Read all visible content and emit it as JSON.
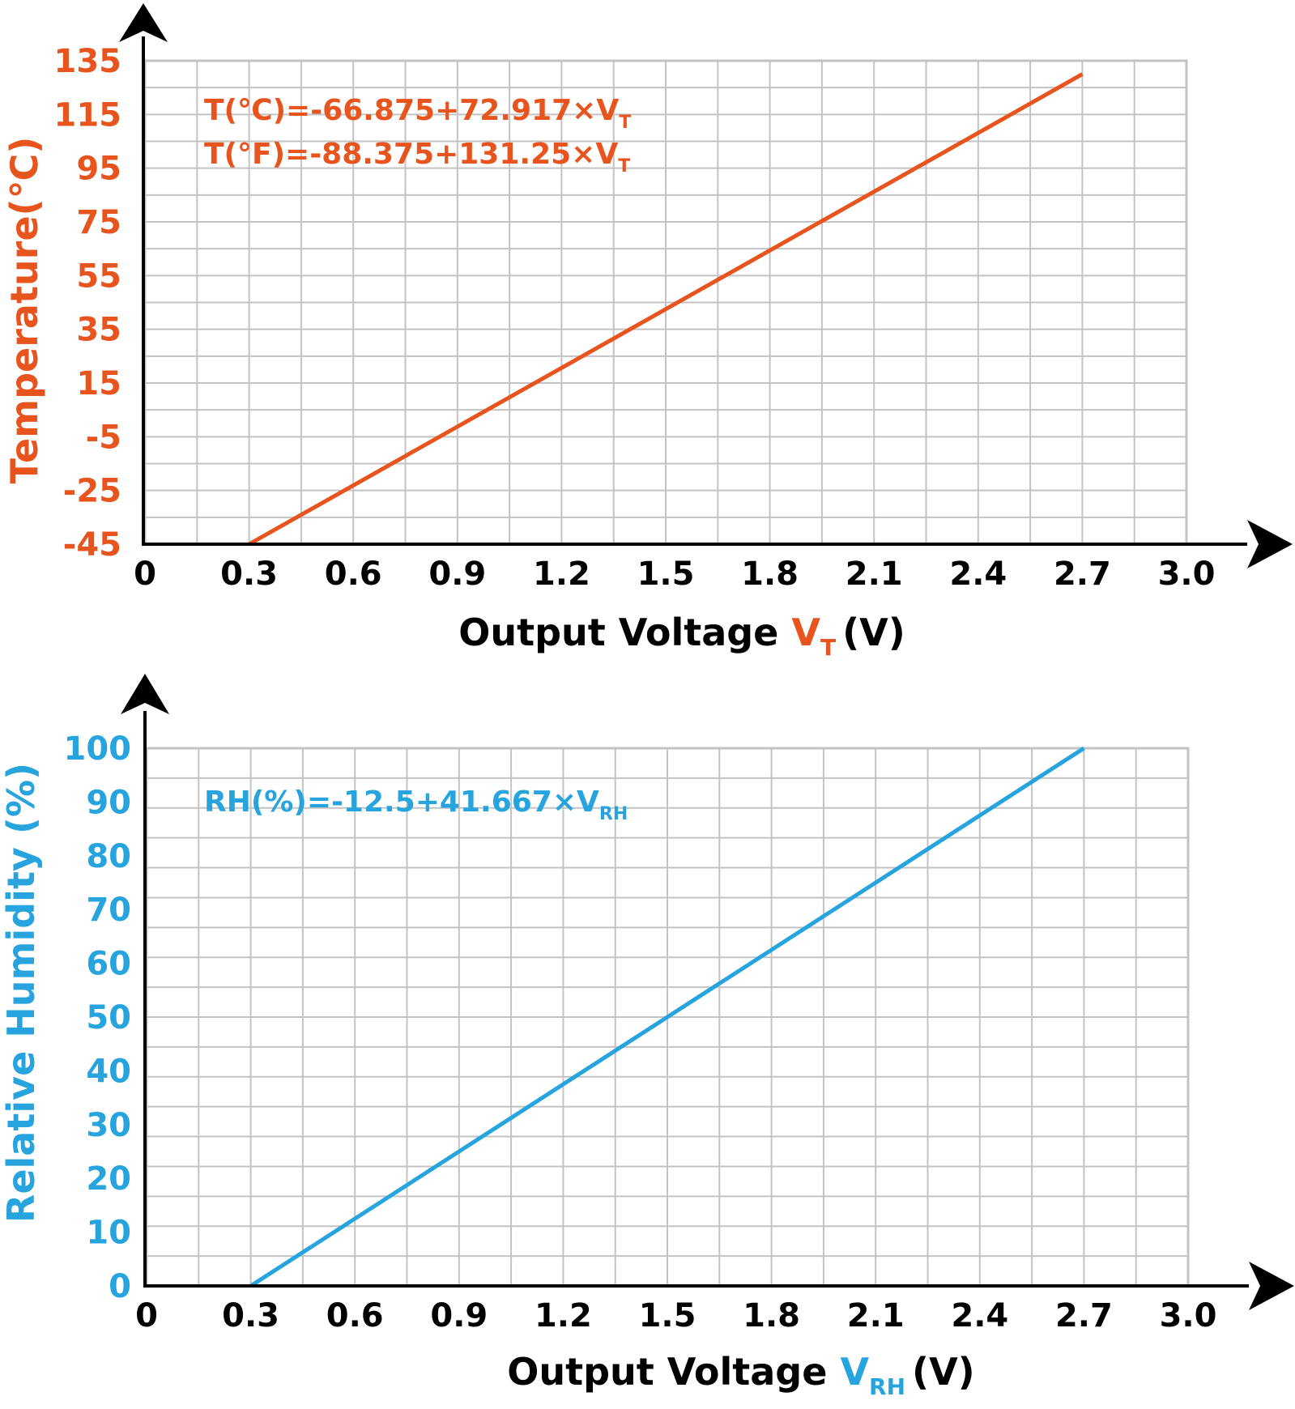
{
  "colors": {
    "temperature": "#e8541e",
    "humidity": "#27a4de",
    "grid": "#c3c3c3",
    "axis": "#000000"
  },
  "chart_data": [
    {
      "type": "line",
      "title": "",
      "xlabel": "Output Voltage",
      "xlabel_var": "V",
      "xlabel_sub": "T",
      "xlabel_unit": "(V)",
      "ylabel": "Temperature(℃)",
      "xlim": [
        0,
        3.0
      ],
      "ylim": [
        -45,
        135
      ],
      "x_ticks": [
        "0",
        "0.3",
        "0.6",
        "0.9",
        "1.2",
        "1.5",
        "1.8",
        "2.1",
        "2.4",
        "2.7",
        "3.0"
      ],
      "y_ticks": [
        "-45",
        "-25",
        "-5",
        "15",
        "35",
        "55",
        "75",
        "95",
        "115",
        "135"
      ],
      "annotations": [
        {
          "main": "T(℃)=-66.875+72.917×V",
          "sub": "T"
        },
        {
          "main": "T(°F)=-88.375+131.25×V",
          "sub": "T"
        }
      ],
      "series": [
        {
          "x": [
            0.3,
            2.7
          ],
          "y": [
            -45,
            130
          ]
        }
      ]
    },
    {
      "type": "line",
      "title": "",
      "xlabel": "Output Voltage",
      "xlabel_var": "V",
      "xlabel_sub": "RH",
      "xlabel_unit": "(V)",
      "ylabel": "Relative Humidity (%)",
      "xlim": [
        0,
        3.0
      ],
      "ylim": [
        0,
        100
      ],
      "x_ticks": [
        "0",
        "0.3",
        "0.6",
        "0.9",
        "1.2",
        "1.5",
        "1.8",
        "2.1",
        "2.4",
        "2.7",
        "3.0"
      ],
      "y_ticks": [
        "0",
        "10",
        "20",
        "30",
        "40",
        "50",
        "60",
        "70",
        "80",
        "90",
        "100"
      ],
      "annotations": [
        {
          "main": "RH(%)=-12.5+41.667×V",
          "sub": "RH"
        }
      ],
      "series": [
        {
          "x": [
            0.3,
            2.7
          ],
          "y": [
            0,
            100
          ]
        }
      ]
    }
  ]
}
